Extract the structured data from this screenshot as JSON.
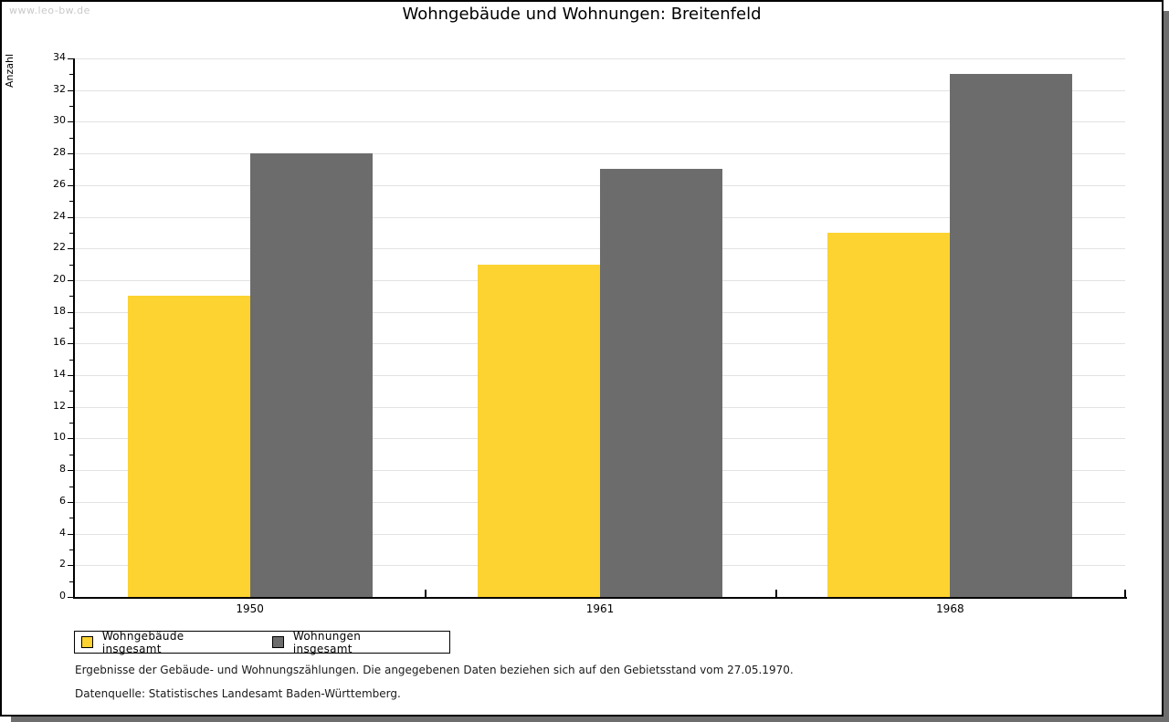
{
  "watermark": "www.leo-bw.de",
  "chart_data": {
    "type": "bar",
    "title": "Wohngebäude und Wohnungen: Breitenfeld",
    "ylabel": "Anzahl",
    "xlabel": "",
    "categories": [
      "1950",
      "1961",
      "1968"
    ],
    "series": [
      {
        "name": "Wohngebäude insgesamt",
        "color": "#FCD330",
        "values": [
          19,
          21,
          23
        ]
      },
      {
        "name": "Wohnungen insgesamt",
        "color": "#6C6C6C",
        "values": [
          28,
          27,
          33
        ]
      }
    ],
    "ylim": [
      0,
      34
    ],
    "ytick_step": 2,
    "yminor_step": 1,
    "grid": true,
    "legend_position": "bottom-left"
  },
  "footnotes": {
    "line1": "Ergebnisse der Gebäude- und Wohnungszählungen. Die angegebenen Daten beziehen sich auf den Gebietsstand vom 27.05.1970.",
    "line2": "Datenquelle: Statistisches Landesamt Baden-Württemberg."
  },
  "colors": {
    "gridline": "#E2E2E2",
    "watermark": "#C9C9C9",
    "shadow": "#6E6E6E",
    "axis": "#000000"
  }
}
